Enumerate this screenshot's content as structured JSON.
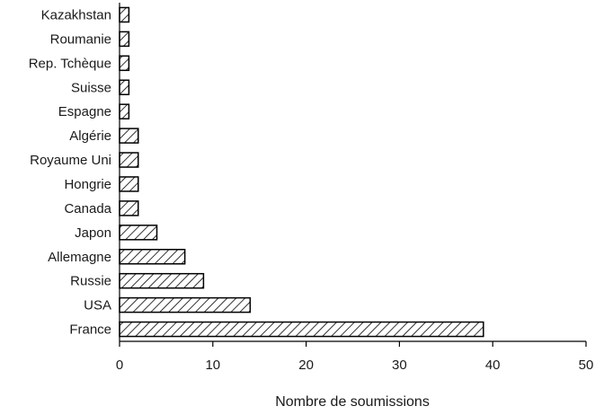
{
  "chart_data": {
    "type": "bar",
    "orientation": "horizontal",
    "categories": [
      "France",
      "USA",
      "Russie",
      "Allemagne",
      "Japon",
      "Canada",
      "Hongrie",
      "Royaume Uni",
      "Algérie",
      "Espagne",
      "Suisse",
      "Rep. Tchèque",
      "Roumanie",
      "Kazakhstan"
    ],
    "values": [
      39,
      14,
      9,
      7,
      4,
      2,
      2,
      2,
      2,
      1,
      1,
      1,
      1,
      1
    ],
    "xlabel": "Nombre de soumissions",
    "ylabel": "",
    "xlim": [
      0,
      50
    ],
    "xticks": [
      0,
      10,
      20,
      30,
      40,
      50
    ],
    "grid": false,
    "legend": "none",
    "bar_fill": "diagonal-hatch",
    "bar_color": "#000000",
    "background": "#ffffff"
  }
}
